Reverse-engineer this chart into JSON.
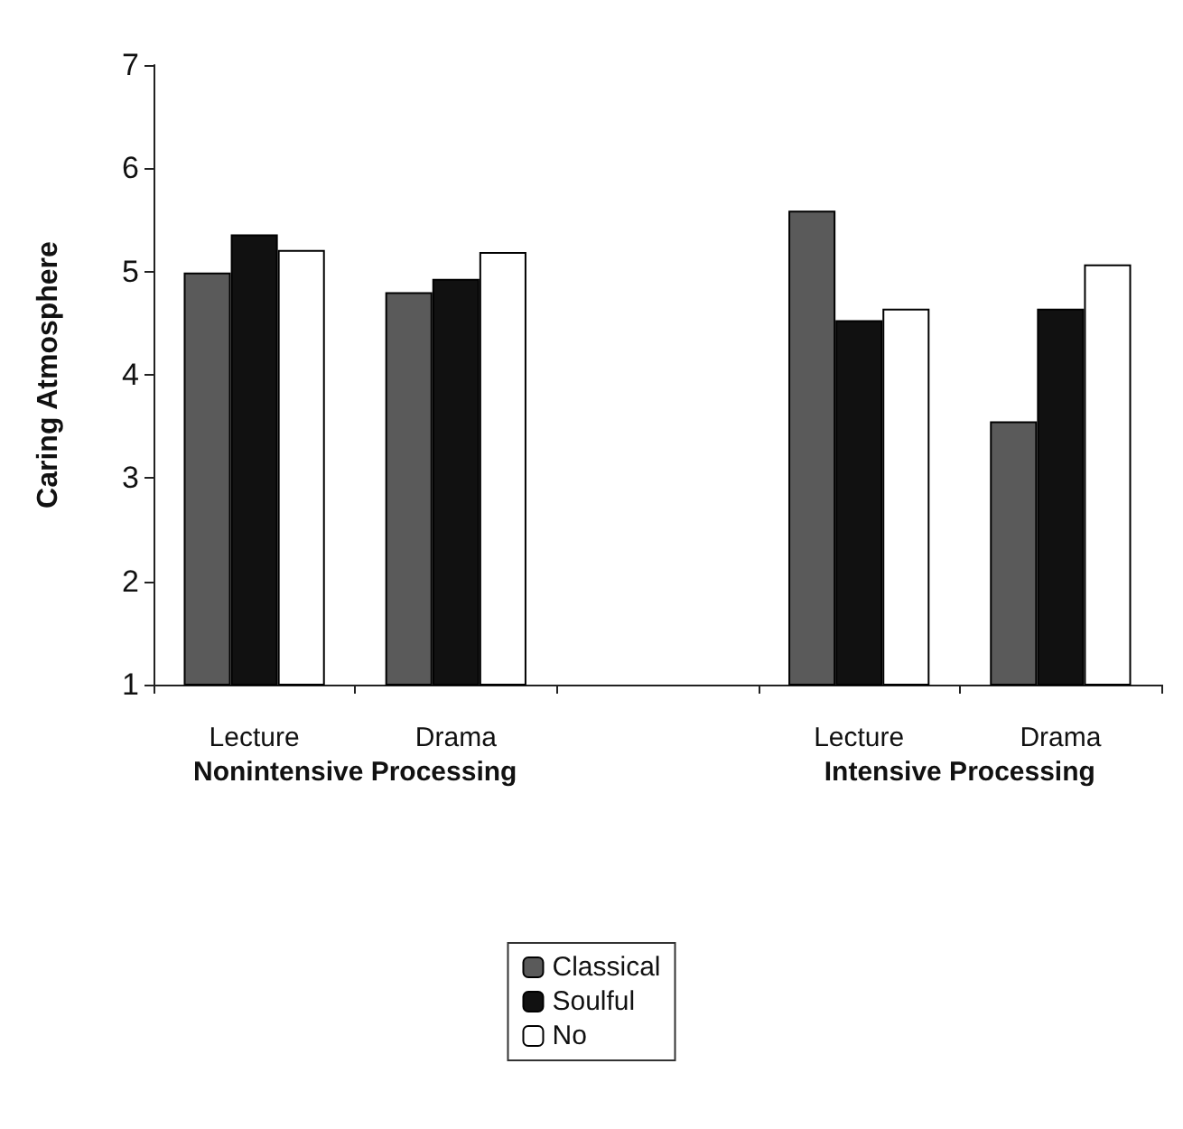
{
  "chart_data": {
    "type": "bar",
    "ylabel": "Caring Atmosphere",
    "categories": [
      "Lecture",
      "Drama",
      null,
      "Lecture",
      "Drama"
    ],
    "series": [
      {
        "name": "Classical",
        "color": "#5a5a5a",
        "values": [
          4.99,
          4.8,
          null,
          5.59,
          3.55
        ]
      },
      {
        "name": "Soulful",
        "color": "#111111",
        "values": [
          5.36,
          4.93,
          null,
          4.53,
          4.64
        ]
      },
      {
        "name": "No",
        "color": "#ffffff",
        "values": [
          5.21,
          5.19,
          null,
          4.64,
          5.07
        ]
      }
    ],
    "ylim": [
      1,
      7
    ],
    "yticks": [
      1,
      2,
      3,
      4,
      5,
      6,
      7
    ],
    "grid": false,
    "legend": "bottom",
    "annotations": [
      "Nonintensive Processing",
      "Intensive Processing"
    ]
  }
}
